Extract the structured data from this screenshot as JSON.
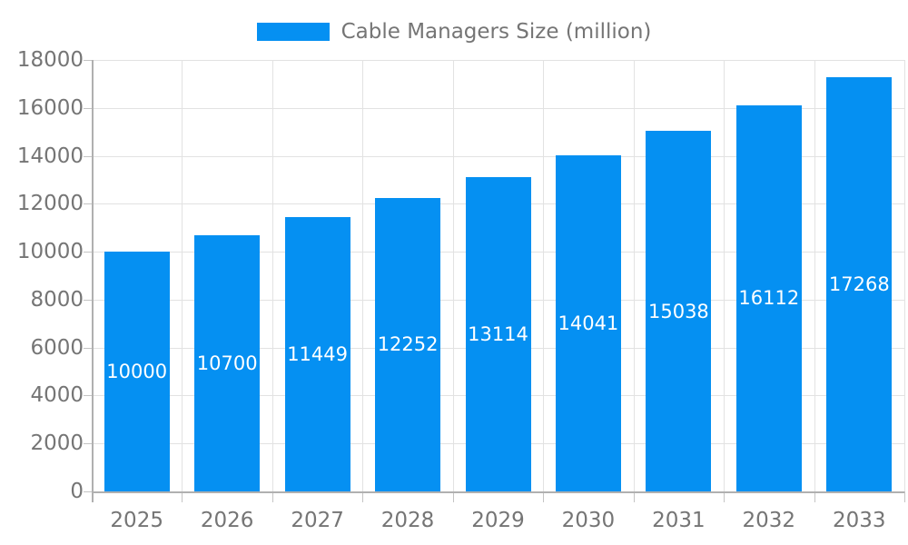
{
  "legend": {
    "label": "Cable Managers Size (million)",
    "swatch_color": "#0590f2"
  },
  "chart_data": {
    "type": "bar",
    "title": "",
    "xlabel": "",
    "ylabel": "",
    "categories": [
      "2025",
      "2026",
      "2027",
      "2028",
      "2029",
      "2030",
      "2031",
      "2032",
      "2033"
    ],
    "series": [
      {
        "name": "Cable Managers Size (million)",
        "values": [
          10000,
          10700,
          11449,
          12252,
          13114,
          14041,
          15038,
          16112,
          17268
        ]
      }
    ],
    "value_labels_shown": true,
    "ylim": [
      0,
      18000
    ],
    "ytick_step": 2000,
    "yticks": [
      0,
      2000,
      4000,
      6000,
      8000,
      10000,
      12000,
      14000,
      16000,
      18000
    ],
    "grid": true,
    "legend_position": "top"
  },
  "colors": {
    "bar": "#0590f2",
    "axis_text": "#757575",
    "value_text": "#ffffff",
    "gridline": "#e2e2e2",
    "axis_line": "#b0b0b0",
    "tick": "#c4c4c4",
    "background": "#ffffff"
  }
}
